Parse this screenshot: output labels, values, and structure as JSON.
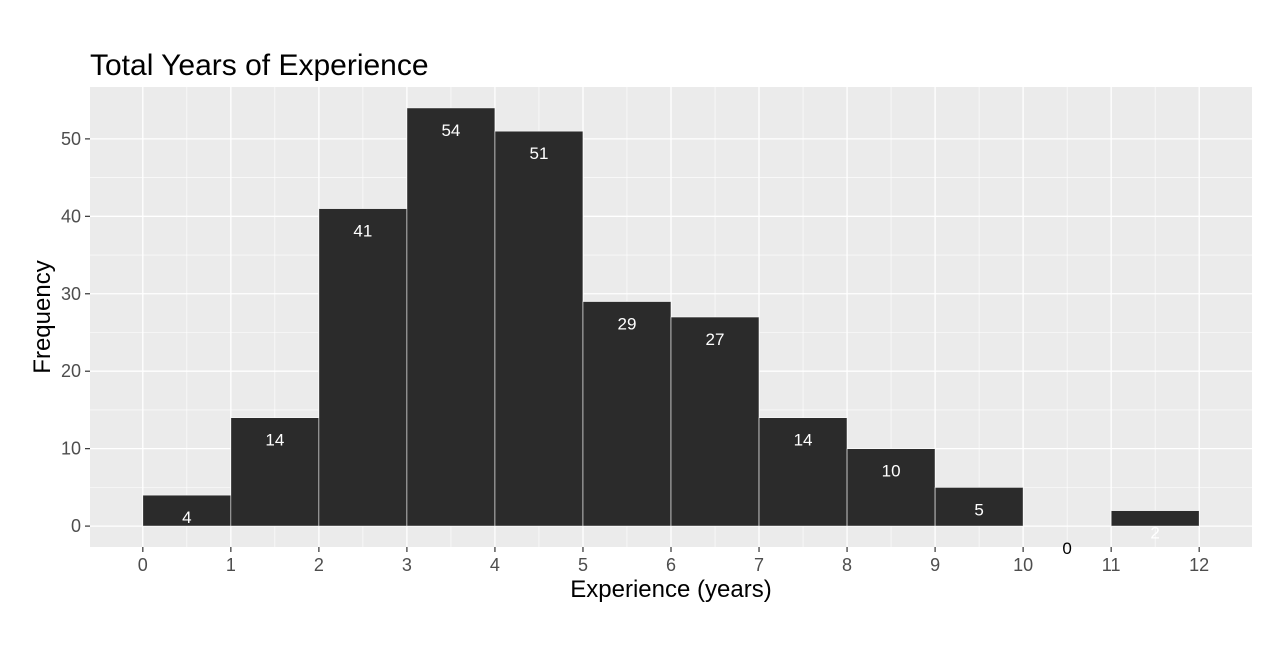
{
  "chart_data": {
    "type": "bar",
    "title": "Total Years of Experience",
    "xlabel": "Experience (years)",
    "ylabel": "Frequency",
    "bins": [
      {
        "from": 0,
        "to": 1,
        "count": 4
      },
      {
        "from": 1,
        "to": 2,
        "count": 14
      },
      {
        "from": 2,
        "to": 3,
        "count": 41
      },
      {
        "from": 3,
        "to": 4,
        "count": 54
      },
      {
        "from": 4,
        "to": 5,
        "count": 51
      },
      {
        "from": 5,
        "to": 6,
        "count": 29
      },
      {
        "from": 6,
        "to": 7,
        "count": 27
      },
      {
        "from": 7,
        "to": 8,
        "count": 14
      },
      {
        "from": 8,
        "to": 9,
        "count": 10
      },
      {
        "from": 9,
        "to": 10,
        "count": 5
      },
      {
        "from": 10,
        "to": 11,
        "count": 0
      },
      {
        "from": 11,
        "to": 12,
        "count": 2
      }
    ],
    "xlim": [
      -0.6,
      12.6
    ],
    "ylim": [
      -2.7,
      56.7
    ],
    "x_ticks": [
      0,
      1,
      2,
      3,
      4,
      5,
      6,
      7,
      8,
      9,
      10,
      11,
      12
    ],
    "y_ticks": [
      0,
      10,
      20,
      30,
      40,
      50
    ],
    "grid": true,
    "colors": {
      "panel_background": "#ebebeb",
      "grid_major": "#ffffff",
      "bar_fill": "#2b2b2b",
      "bar_outline": "#ffffff",
      "bar_label_inside": "#ffffff",
      "bar_label_outside": "#000000",
      "tick_label": "#4d4d4d"
    }
  }
}
